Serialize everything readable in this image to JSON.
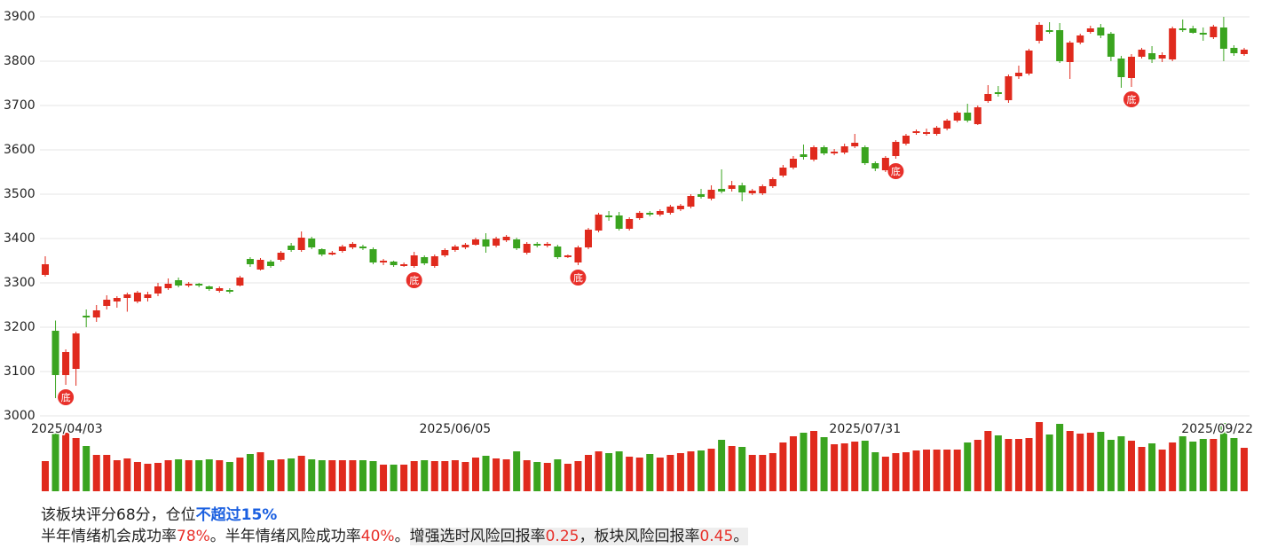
{
  "chart_data": {
    "type": "candlestick",
    "categories": [
      "2025/04/03",
      null,
      null,
      null,
      null,
      null,
      null,
      null,
      null,
      null,
      null,
      null,
      null,
      null,
      null,
      null,
      null,
      null,
      null,
      null,
      null,
      null,
      null,
      null,
      null,
      null,
      null,
      null,
      null,
      null,
      null,
      null,
      null,
      null,
      null,
      null,
      null,
      null,
      null,
      null,
      "2025/06/05",
      null,
      null,
      null,
      null,
      null,
      null,
      null,
      null,
      null,
      null,
      null,
      null,
      null,
      null,
      null,
      null,
      null,
      null,
      null,
      null,
      null,
      null,
      null,
      null,
      null,
      null,
      null,
      null,
      null,
      null,
      null,
      null,
      null,
      null,
      null,
      null,
      null,
      null,
      null,
      "2025/07/31",
      null,
      null,
      null,
      null,
      null,
      null,
      null,
      null,
      null,
      null,
      null,
      null,
      null,
      null,
      null,
      null,
      null,
      null,
      null,
      null,
      null,
      null,
      null,
      null,
      null,
      null,
      null,
      null,
      null,
      null,
      null,
      null,
      null,
      null,
      null,
      null,
      "2025/09/22"
    ],
    "open": [
      3318,
      3192,
      3092,
      3106,
      3226,
      3222,
      3248,
      3258,
      3266,
      3258,
      3266,
      3276,
      3288,
      3306,
      3294,
      3298,
      3292,
      3282,
      3284,
      3294,
      3354,
      3330,
      3348,
      3352,
      3384,
      3374,
      3400,
      3376,
      3364,
      3372,
      3380,
      3382,
      3376,
      3346,
      3348,
      3338,
      3338,
      3358,
      3338,
      3362,
      3374,
      3380,
      3386,
      3398,
      3384,
      3396,
      3398,
      3368,
      3388,
      3384,
      3382,
      3358,
      3346,
      3380,
      3418,
      3452,
      3452,
      3422,
      3446,
      3458,
      3454,
      3458,
      3466,
      3472,
      3500,
      3490,
      3512,
      3512,
      3520,
      3502,
      3502,
      3518,
      3542,
      3560,
      3590,
      3578,
      3606,
      3592,
      3594,
      3608,
      3606,
      3570,
      3554,
      3586,
      3614,
      3638,
      3636,
      3636,
      3648,
      3666,
      3684,
      3658,
      3710,
      3730,
      3712,
      3766,
      3772,
      3846,
      3870,
      3870,
      3798,
      3842,
      3866,
      3876,
      3862,
      3806,
      3762,
      3810,
      3818,
      3806,
      3804,
      3874,
      3874,
      3864,
      3854,
      3876,
      3830,
      3816
    ],
    "close": [
      3342,
      3092,
      3144,
      3186,
      3222,
      3238,
      3262,
      3266,
      3274,
      3278,
      3274,
      3292,
      3298,
      3294,
      3298,
      3294,
      3286,
      3288,
      3280,
      3312,
      3342,
      3352,
      3338,
      3368,
      3374,
      3402,
      3380,
      3364,
      3368,
      3382,
      3388,
      3378,
      3346,
      3350,
      3340,
      3342,
      3362,
      3344,
      3360,
      3374,
      3382,
      3386,
      3398,
      3382,
      3400,
      3404,
      3378,
      3388,
      3384,
      3388,
      3358,
      3362,
      3380,
      3420,
      3454,
      3448,
      3422,
      3444,
      3458,
      3454,
      3462,
      3472,
      3474,
      3496,
      3494,
      3510,
      3506,
      3520,
      3504,
      3508,
      3518,
      3534,
      3560,
      3580,
      3584,
      3606,
      3592,
      3596,
      3608,
      3616,
      3570,
      3558,
      3582,
      3618,
      3632,
      3642,
      3640,
      3650,
      3666,
      3684,
      3666,
      3696,
      3726,
      3726,
      3766,
      3774,
      3824,
      3882,
      3866,
      3800,
      3842,
      3858,
      3874,
      3858,
      3810,
      3764,
      3810,
      3826,
      3804,
      3814,
      3874,
      3870,
      3864,
      3860,
      3878,
      3828,
      3818,
      3826
    ],
    "high": [
      3360,
      3215,
      3150,
      3190,
      3240,
      3250,
      3272,
      3270,
      3278,
      3282,
      3280,
      3300,
      3310,
      3312,
      3302,
      3300,
      3294,
      3292,
      3288,
      3316,
      3358,
      3356,
      3352,
      3372,
      3390,
      3416,
      3404,
      3378,
      3372,
      3386,
      3392,
      3386,
      3380,
      3354,
      3350,
      3346,
      3370,
      3362,
      3364,
      3378,
      3386,
      3390,
      3402,
      3412,
      3404,
      3408,
      3402,
      3392,
      3392,
      3392,
      3386,
      3364,
      3384,
      3424,
      3458,
      3462,
      3460,
      3448,
      3462,
      3462,
      3466,
      3476,
      3478,
      3500,
      3512,
      3520,
      3556,
      3530,
      3526,
      3512,
      3522,
      3538,
      3566,
      3586,
      3612,
      3610,
      3610,
      3602,
      3614,
      3636,
      3610,
      3574,
      3586,
      3622,
      3636,
      3646,
      3648,
      3654,
      3670,
      3688,
      3704,
      3700,
      3746,
      3744,
      3770,
      3790,
      3828,
      3888,
      3888,
      3886,
      3846,
      3862,
      3880,
      3884,
      3866,
      3812,
      3816,
      3830,
      3834,
      3820,
      3878,
      3894,
      3880,
      3876,
      3882,
      3900,
      3836,
      3830
    ],
    "low": [
      3314,
      3040,
      3070,
      3068,
      3200,
      3212,
      3240,
      3244,
      3235,
      3254,
      3258,
      3270,
      3284,
      3290,
      3290,
      3290,
      3282,
      3278,
      3276,
      3292,
      3336,
      3328,
      3334,
      3348,
      3370,
      3370,
      3376,
      3360,
      3362,
      3368,
      3376,
      3374,
      3342,
      3340,
      3336,
      3336,
      3334,
      3340,
      3334,
      3358,
      3370,
      3376,
      3384,
      3368,
      3380,
      3392,
      3374,
      3364,
      3380,
      3380,
      3354,
      3356,
      3340,
      3376,
      3414,
      3440,
      3418,
      3418,
      3442,
      3450,
      3450,
      3454,
      3462,
      3468,
      3490,
      3486,
      3502,
      3506,
      3484,
      3498,
      3498,
      3514,
      3538,
      3556,
      3578,
      3574,
      3588,
      3588,
      3590,
      3604,
      3566,
      3552,
      3550,
      3580,
      3610,
      3634,
      3632,
      3632,
      3644,
      3662,
      3662,
      3656,
      3706,
      3720,
      3706,
      3760,
      3768,
      3840,
      3862,
      3796,
      3760,
      3838,
      3862,
      3852,
      3800,
      3740,
      3742,
      3806,
      3796,
      3798,
      3800,
      3866,
      3862,
      3846,
      3850,
      3800,
      3812,
      3812
    ],
    "volume": [
      34,
      66,
      66,
      60,
      51,
      41,
      41,
      35,
      37,
      33,
      31,
      32,
      35,
      36,
      35,
      35,
      36,
      35,
      33,
      38,
      42,
      44,
      35,
      36,
      37,
      40,
      36,
      35,
      35,
      35,
      35,
      35,
      34,
      30,
      30,
      30,
      34,
      35,
      34,
      34,
      35,
      33,
      38,
      40,
      37,
      36,
      45,
      35,
      33,
      32,
      36,
      31,
      34,
      41,
      45,
      43,
      45,
      39,
      38,
      42,
      38,
      41,
      43,
      45,
      46,
      48,
      58,
      51,
      50,
      41,
      41,
      43,
      55,
      62,
      66,
      68,
      61,
      53,
      54,
      56,
      57,
      44,
      39,
      43,
      44,
      46,
      47,
      47,
      47,
      47,
      55,
      58,
      68,
      63,
      59,
      59,
      60,
      78,
      64,
      76,
      68,
      65,
      66,
      67,
      58,
      62,
      57,
      50,
      54,
      47,
      55,
      62,
      56,
      59,
      59,
      77,
      60,
      49
    ],
    "signals": [
      null,
      null,
      "底",
      null,
      null,
      null,
      null,
      null,
      null,
      null,
      null,
      null,
      null,
      null,
      null,
      null,
      null,
      null,
      null,
      null,
      null,
      null,
      null,
      null,
      null,
      null,
      null,
      null,
      null,
      null,
      null,
      null,
      null,
      null,
      null,
      null,
      "底",
      null,
      null,
      null,
      null,
      null,
      null,
      null,
      null,
      null,
      null,
      null,
      null,
      null,
      null,
      null,
      "底",
      null,
      null,
      null,
      null,
      null,
      null,
      null,
      null,
      null,
      null,
      null,
      null,
      null,
      null,
      null,
      null,
      null,
      null,
      null,
      null,
      null,
      null,
      null,
      null,
      null,
      null,
      null,
      null,
      null,
      null,
      "底",
      null,
      null,
      null,
      null,
      null,
      null,
      null,
      null,
      null,
      null,
      null,
      null,
      null,
      null,
      null,
      null,
      null,
      null,
      null,
      null,
      null,
      null,
      "底",
      null,
      null,
      null,
      null,
      null,
      null,
      null,
      null,
      null,
      null,
      null
    ],
    "ylim": [
      3000,
      3900
    ],
    "yticks": [
      3000,
      3100,
      3200,
      3300,
      3400,
      3500,
      3600,
      3700,
      3800,
      3900
    ],
    "grid": true,
    "up_color": "#e02a1d",
    "down_color": "#3aa41f",
    "signal_color": "#e8302a"
  },
  "summary": {
    "line1": [
      "该板块评分68分，仓位",
      "不超过15%"
    ],
    "line2": [
      "半年情绪机会成功率",
      "78%",
      "。半年情绪风险成功率",
      "40%",
      "。"
    ],
    "line3": [
      "增强选时风险回报率",
      "0.25",
      "，板块风险回报率",
      "0.45",
      "。"
    ]
  }
}
